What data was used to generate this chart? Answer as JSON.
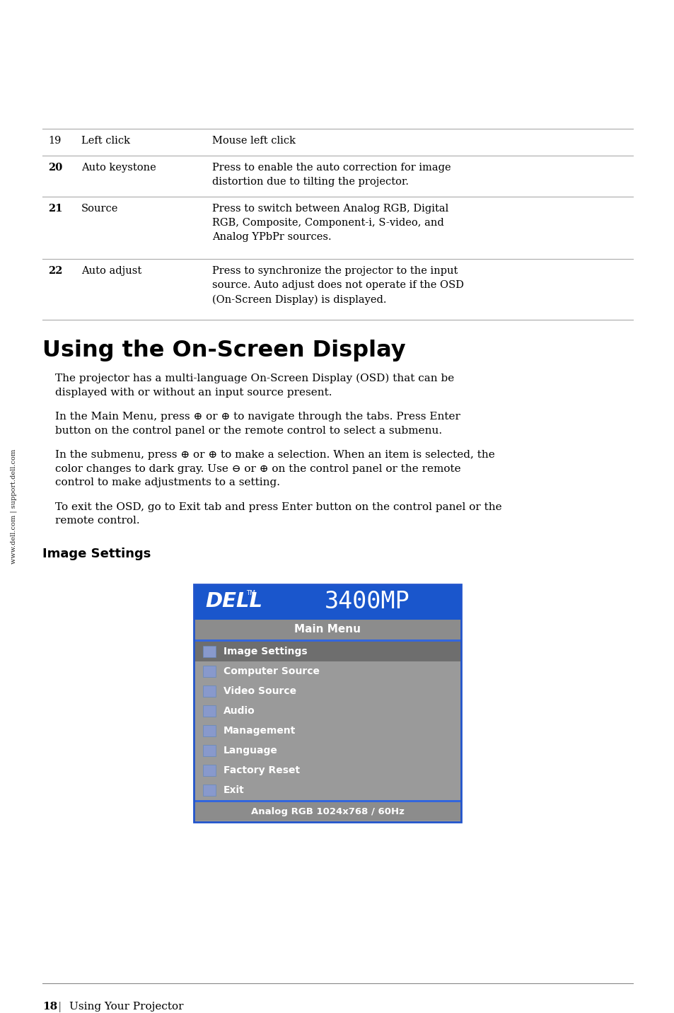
{
  "bg_color": "#ffffff",
  "sidebar_text": "www.dell.com | support.dell.com",
  "table_rows": [
    {
      "num": "19",
      "label": "Left click",
      "desc": "Mouse left click",
      "num_bold": false
    },
    {
      "num": "20",
      "label": "Auto keystone",
      "desc": "Press to enable the auto correction for image\ndistortion due to tilting the projector.",
      "num_bold": true
    },
    {
      "num": "21",
      "label": "Source",
      "desc": "Press to switch between Analog RGB, Digital\nRGB, Composite, Component-i, S-video, and\nAnalog YPbPr sources.",
      "num_bold": true
    },
    {
      "num": "22",
      "label": "Auto adjust",
      "desc": "Press to synchronize the projector to the input\nsource. Auto adjust does not operate if the OSD\n(On-Screen Display) is displayed.",
      "num_bold": true
    }
  ],
  "section_title": "Using the On-Screen Display",
  "subsection_title": "Image Settings",
  "osd_title_bg": "#1a56cc",
  "osd_gray_bg": "#9a9a9a",
  "osd_selected_bg": "#6e6e6e",
  "osd_menu_bar_bg": "#8c8c8c",
  "osd_border_color": "#2255cc",
  "osd_separator_color": "#3366dd",
  "osd_items": [
    "Image Settings",
    "Computer Source",
    "Video Source",
    "Audio",
    "Management",
    "Language",
    "Factory Reset",
    "Exit"
  ],
  "osd_footer_text": "Analog RGB 1024x768 / 60Hz",
  "footer_page": "18",
  "footer_text": "Using Your Projector",
  "table_line_color": "#aaaaaa",
  "text_color": "#000000"
}
